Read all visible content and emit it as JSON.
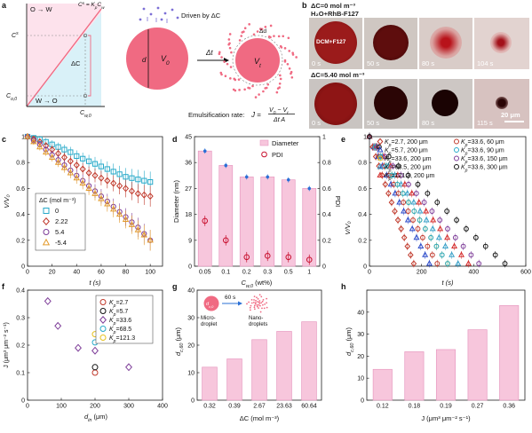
{
  "panel_letters": [
    "a",
    "b",
    "c",
    "d",
    "e",
    "f",
    "g",
    "h"
  ],
  "colors": {
    "pink": "#f06a82",
    "bar_fill": "#f7c6dc",
    "bar_stroke": "#e79ac0",
    "red": "#c8102e",
    "blue": "#2a6fd6",
    "shade_pink": "#fde2ec",
    "shade_blue": "#d9f1f8"
  },
  "panel_a": {
    "o_w": "O → W",
    "w_o": "W → O",
    "eq_cs": "C",
    "eq_cs_sup": "s",
    "eq_cs_sub": "o",
    "eq_rhs": " = K",
    "eq_rhs_sub": "p",
    "eq_rhs2": "C",
    "eq_rhs2_sub": "w",
    "y_cs": "C",
    "y_cs_sup": "s",
    "y_cs_sub": "o",
    "y_co": "C",
    "y_co_sub": "o,0",
    "x_cw": "C",
    "x_cw_sub": "w,0",
    "dc": "ΔC",
    "driven": "Driven by ΔC",
    "d": "d",
    "v0": "V",
    "v0_sub": "0",
    "dt": "Δt",
    "vt": "V",
    "vt_sub": "t",
    "dd": "Δd",
    "rate_label": "Emulsification rate:",
    "rate_j": "J",
    "rate_eq": " = ",
    "rate_num": "V",
    "rate_num_sub0": "0",
    "rate_num_mid": " − V",
    "rate_num_subt": "t",
    "rate_den": "Δt A"
  },
  "panel_b": {
    "row1_label": "ΔC=0 mol m⁻³",
    "row1_sub": "H₂O+RhB-F127",
    "row1_drop": "DCM+F127",
    "row1_times": [
      "0 s",
      "50 s",
      "80 s",
      "104 s"
    ],
    "row2_label": "ΔC=5.40 mol m⁻³",
    "row2_times": [
      "0 s",
      "50 s",
      "80 s",
      "115 s"
    ],
    "scale": "20 μm"
  },
  "chart_data": [
    {
      "panel": "c",
      "type": "scatter",
      "xlabel": "t (s)",
      "ylabel": "V/V₀",
      "xlim": [
        0,
        110
      ],
      "ylim": [
        0,
        1
      ],
      "xticks": [
        0,
        20,
        40,
        60,
        80,
        100
      ],
      "yticks": [
        "0",
        "0.2",
        "0.4",
        "0.6",
        "0.8",
        "1"
      ],
      "legend_title": "ΔC (mol m⁻³)",
      "series": [
        {
          "name": "0",
          "marker": "square",
          "color": "#27a9c9",
          "x": [
            0,
            5,
            10,
            15,
            20,
            25,
            30,
            35,
            40,
            45,
            50,
            55,
            60,
            65,
            70,
            75,
            80,
            85,
            90,
            95,
            100
          ],
          "y": [
            1,
            0.99,
            0.98,
            0.96,
            0.94,
            0.92,
            0.9,
            0.88,
            0.85,
            0.83,
            0.81,
            0.79,
            0.77,
            0.75,
            0.73,
            0.71,
            0.69,
            0.68,
            0.67,
            0.66,
            0.65
          ]
        },
        {
          "name": "2.22",
          "marker": "diamond",
          "color": "#c0392b",
          "x": [
            0,
            5,
            10,
            15,
            20,
            25,
            30,
            35,
            40,
            45,
            50,
            55,
            60,
            65,
            70,
            75,
            80,
            85,
            90,
            95,
            100
          ],
          "y": [
            1,
            0.98,
            0.96,
            0.93,
            0.9,
            0.87,
            0.84,
            0.81,
            0.78,
            0.75,
            0.72,
            0.7,
            0.68,
            0.66,
            0.64,
            0.62,
            0.6,
            0.58,
            0.56,
            0.55,
            0.54
          ]
        },
        {
          "name": "5.4",
          "marker": "circle",
          "color": "#7d3c98",
          "x": [
            0,
            5,
            10,
            15,
            20,
            25,
            30,
            35,
            40,
            45,
            50,
            55,
            60,
            65,
            70,
            75,
            80,
            85,
            90,
            95,
            100
          ],
          "y": [
            1,
            0.97,
            0.94,
            0.9,
            0.86,
            0.82,
            0.78,
            0.74,
            0.7,
            0.66,
            0.62,
            0.58,
            0.54,
            0.5,
            0.46,
            0.42,
            0.38,
            0.34,
            0.3,
            0.25,
            0.2
          ]
        },
        {
          "name": "-5.4",
          "marker": "triangle",
          "color": "#e39a2b",
          "x": [
            0,
            5,
            10,
            15,
            20,
            25,
            30,
            35,
            40,
            45,
            50,
            55,
            60,
            65,
            70,
            75,
            80,
            85,
            90,
            95,
            100
          ],
          "y": [
            1,
            0.96,
            0.92,
            0.88,
            0.84,
            0.8,
            0.76,
            0.72,
            0.68,
            0.64,
            0.6,
            0.56,
            0.52,
            0.48,
            0.44,
            0.4,
            0.36,
            0.32,
            0.28,
            0.24,
            0.2
          ]
        }
      ]
    },
    {
      "panel": "d",
      "type": "bar",
      "xlabel_main": "C",
      "xlabel_sub": "w,0",
      "xlabel_unit": " (wt%)",
      "ylabel": "Diameter (nm)",
      "y2label": "PDI",
      "categories": [
        "0.05",
        "0.1",
        "0.2",
        "0.3",
        "0.5",
        "1"
      ],
      "values": [
        40,
        35,
        31,
        31,
        30,
        27
      ],
      "pdi": [
        0.35,
        0.2,
        0.07,
        0.08,
        0.07,
        0.05
      ],
      "ylim": [
        0,
        45
      ],
      "yticks": [
        "0",
        "9",
        "18",
        "27",
        "36",
        "45"
      ],
      "y2lim": [
        0,
        1
      ],
      "y2ticks": [
        "0",
        "0.2",
        "0.4",
        "0.6",
        "0.8",
        "1"
      ],
      "legend": [
        "Diameter",
        "PDI"
      ]
    },
    {
      "panel": "e",
      "type": "scatter",
      "xlabel": "t (s)",
      "ylabel": "V/V₀",
      "xlim": [
        0,
        600
      ],
      "ylim": [
        0,
        1
      ],
      "xticks": [
        0,
        200,
        400,
        600
      ],
      "yticks": [
        "0",
        "0.2",
        "0.4",
        "0.6",
        "0.8",
        "1"
      ],
      "series": [
        {
          "name": "K_p=2.7, 200 μm",
          "label_k": "K",
          "label_sub": "p",
          "label_rest": "=2.7, 200 μm",
          "marker": "diamond",
          "color": "#c0392b",
          "tend": 170
        },
        {
          "name": "K_p=5.7, 200 μm",
          "label_k": "K",
          "label_sub": "p",
          "label_rest": "=5.7, 200 μm",
          "marker": "triangle",
          "color": "#2b4ac9",
          "tend": 230
        },
        {
          "name": "K_p=33.6, 200 μm",
          "label_k": "K",
          "label_sub": "p",
          "label_rest": "=33.6, 200 μm",
          "marker": "circle",
          "color": "#e6c21e",
          "tend": 300
        },
        {
          "name": "K_p=68.5, 200 μm",
          "label_k": "K",
          "label_sub": "p",
          "label_rest": "=68.5, 200 μm",
          "marker": "triangle",
          "color": "#3aa0c8",
          "tend": 340
        },
        {
          "name": "K_p=121.3, 200 μm",
          "label_k": "K",
          "label_sub": "p",
          "label_rest": "=121.3, 200 μm",
          "marker": "triangle",
          "color": "#d42a2a",
          "tend": 380
        },
        {
          "name": "K_p=33.6, 60 μm",
          "label_k": "K",
          "label_sub": "p",
          "label_rest": "=33.6, 60 μm",
          "marker": "circle",
          "color": "#c0392b",
          "tend": 260
        },
        {
          "name": "K_p=33.6, 90 μm",
          "label_k": "K",
          "label_sub": "p",
          "label_rest": "=33.6, 90 μm",
          "marker": "circle",
          "color": "#27a9c9",
          "tend": 300
        },
        {
          "name": "K_p=33.6, 150 μm",
          "label_k": "K",
          "label_sub": "p",
          "label_rest": "=33.6, 150 μm",
          "marker": "circle",
          "color": "#7d3c98",
          "tend": 420
        },
        {
          "name": "K_p=33.6, 300 μm",
          "label_k": "K",
          "label_sub": "p",
          "label_rest": "=33.6, 300 μm",
          "marker": "circle",
          "color": "#111111",
          "tend": 520
        }
      ]
    },
    {
      "panel": "f",
      "type": "scatter",
      "xlabel_main": "d",
      "xlabel_sub": "in",
      "xlabel_unit": " (μm)",
      "ylabel": "J (μm³ μm⁻² s⁻¹)",
      "xlim": [
        0,
        400
      ],
      "ylim": [
        0,
        0.4
      ],
      "xticks": [
        0,
        100,
        200,
        300,
        400
      ],
      "yticks": [
        "0",
        "0.1",
        "0.2",
        "0.3",
        "0.4"
      ],
      "series": [
        {
          "name": "K_p=2.7",
          "label_rest": "=2.7",
          "marker": "circle",
          "color": "#c0392b",
          "x": [
            200
          ],
          "y": [
            0.1
          ]
        },
        {
          "name": "K_p=5.7",
          "label_rest": "=5.7",
          "marker": "circle",
          "color": "#111111",
          "x": [
            200
          ],
          "y": [
            0.12
          ]
        },
        {
          "name": "K_p=33.6",
          "label_rest": "=33.6",
          "marker": "diamond",
          "color": "#7d3c98",
          "x": [
            60,
            90,
            150,
            200,
            300
          ],
          "y": [
            0.36,
            0.27,
            0.19,
            0.18,
            0.12
          ]
        },
        {
          "name": "K_p=68.5",
          "label_rest": "=68.5",
          "marker": "circle",
          "color": "#27a9c9",
          "x": [
            200
          ],
          "y": [
            0.21
          ]
        },
        {
          "name": "K_p=121.3",
          "label_rest": "=121.3",
          "marker": "circle",
          "color": "#e6c21e",
          "x": [
            200
          ],
          "y": [
            0.24
          ]
        }
      ]
    },
    {
      "panel": "g",
      "type": "bar",
      "xlabel": "ΔC (mol m⁻³)",
      "ylabel_main": "d",
      "ylabel_sub": "c,60",
      "ylabel_unit": " (μm)",
      "categories": [
        "0.32",
        "0.39",
        "2.67",
        "23.63",
        "60.64"
      ],
      "values": [
        12,
        15,
        22,
        25,
        28.5
      ],
      "ylim": [
        0,
        40
      ],
      "yticks": [
        "0",
        "10",
        "20",
        "30",
        "40"
      ],
      "inset_time": "60 s",
      "inset_micro": "Micro-droplet",
      "inset_nano": "Nano-droplets",
      "inset_d": "d",
      "inset_dsub": "c,0"
    },
    {
      "panel": "h",
      "type": "bar",
      "xlabel": "J (μm³ μm⁻² s⁻¹)",
      "ylabel_main": "d",
      "ylabel_sub": "c,60",
      "ylabel_unit": " (μm)",
      "categories": [
        "0.12",
        "0.18",
        "0.19",
        "0.27",
        "0.36"
      ],
      "values": [
        14,
        22,
        23,
        32,
        43
      ],
      "ylim": [
        0,
        50
      ],
      "yticks": [
        "0",
        "10",
        "20",
        "30",
        "40"
      ]
    }
  ]
}
